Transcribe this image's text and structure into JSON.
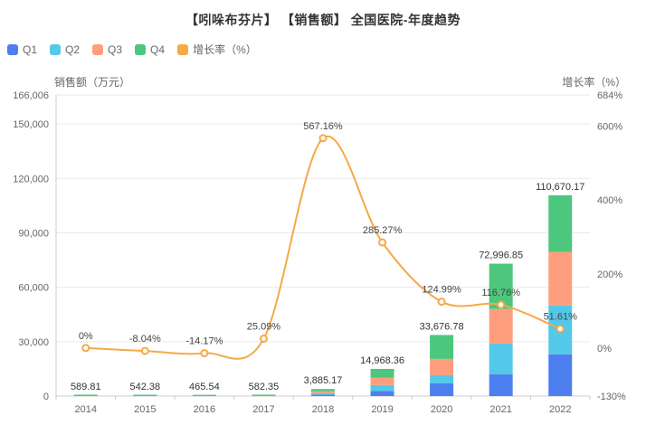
{
  "title": "【吲哚布芬片】 【销售额】 全国医院-年度趋势",
  "colors": {
    "q1": "#4e7ff0",
    "q2": "#54c8e8",
    "q3": "#ff9e7d",
    "q4": "#4dc77d",
    "growth_line": "#f6a947",
    "grid": "#e9e9e9",
    "axis": "#cccccc",
    "tick_text": "#666666",
    "total_label_text": "#333333",
    "growth_label_text": "#444444"
  },
  "legend": [
    {
      "label": "Q1",
      "color": "#4e7ff0"
    },
    {
      "label": "Q2",
      "color": "#54c8e8"
    },
    {
      "label": "Q3",
      "color": "#ff9e7d"
    },
    {
      "label": "Q4",
      "color": "#4dc77d"
    },
    {
      "label": "增长率（%）",
      "color": "#f6a947"
    }
  ],
  "chart_data": {
    "type": "bar+line",
    "title": "【吲哚布芬片】 【销售额】 全国医院-年度趋势",
    "categories": [
      "2014",
      "2015",
      "2016",
      "2017",
      "2018",
      "2019",
      "2020",
      "2021",
      "2022"
    ],
    "stacked_series": [
      {
        "name": "Q1",
        "color": "#4e7ff0",
        "values": [
          140,
          130,
          110,
          135,
          700,
          2800,
          7000,
          12000,
          23000
        ]
      },
      {
        "name": "Q2",
        "color": "#54c8e8",
        "values": [
          145,
          135,
          115,
          142,
          900,
          3300,
          4500,
          17000,
          27000
        ]
      },
      {
        "name": "Q3",
        "color": "#ff9e7d",
        "values": [
          150,
          138,
          118,
          150,
          1000,
          4000,
          9000,
          19000,
          29500
        ]
      },
      {
        "name": "Q4",
        "color": "#4dc77d",
        "values": [
          154.81,
          139.38,
          122.54,
          155.35,
          1285.17,
          4868.36,
          13176.78,
          24996.85,
          31170.17
        ]
      }
    ],
    "totals": [
      589.81,
      542.38,
      465.54,
      582.35,
      3885.17,
      14968.36,
      33676.78,
      72996.85,
      110670.17
    ],
    "total_labels": [
      "589.81",
      "542.38",
      "465.54",
      "582.35",
      "3,885.17",
      "14,968.36",
      "33,676.78",
      "72,996.85",
      "110,670.17"
    ],
    "line_series": {
      "name": "增长率（%）",
      "color": "#f6a947",
      "values": [
        0,
        -8.04,
        -14.17,
        25.09,
        567.16,
        285.27,
        124.99,
        116.76,
        51.61
      ]
    },
    "growth_labels": [
      "0%",
      "-8.04%",
      "-14.17%",
      "25.09%",
      "567.16%",
      "285.27%",
      "124.99%",
      "116.76%",
      "51.61%"
    ],
    "left_axis": {
      "label": "销售额（万元）",
      "max": 166006,
      "ticks": [
        0,
        30000,
        60000,
        90000,
        120000,
        150000,
        166006
      ],
      "tick_labels": [
        "0",
        "30,000",
        "60,000",
        "90,000",
        "120,000",
        "150,000",
        "166,006"
      ]
    },
    "right_axis": {
      "label": "增长率（%）",
      "min": -130,
      "max": 684,
      "ticks": [
        -130,
        0,
        200,
        400,
        600,
        684
      ],
      "tick_labels": [
        "-130%",
        "0%",
        "200%",
        "400%",
        "600%",
        "684%"
      ]
    },
    "legend_position": "top-left",
    "grid": true
  }
}
